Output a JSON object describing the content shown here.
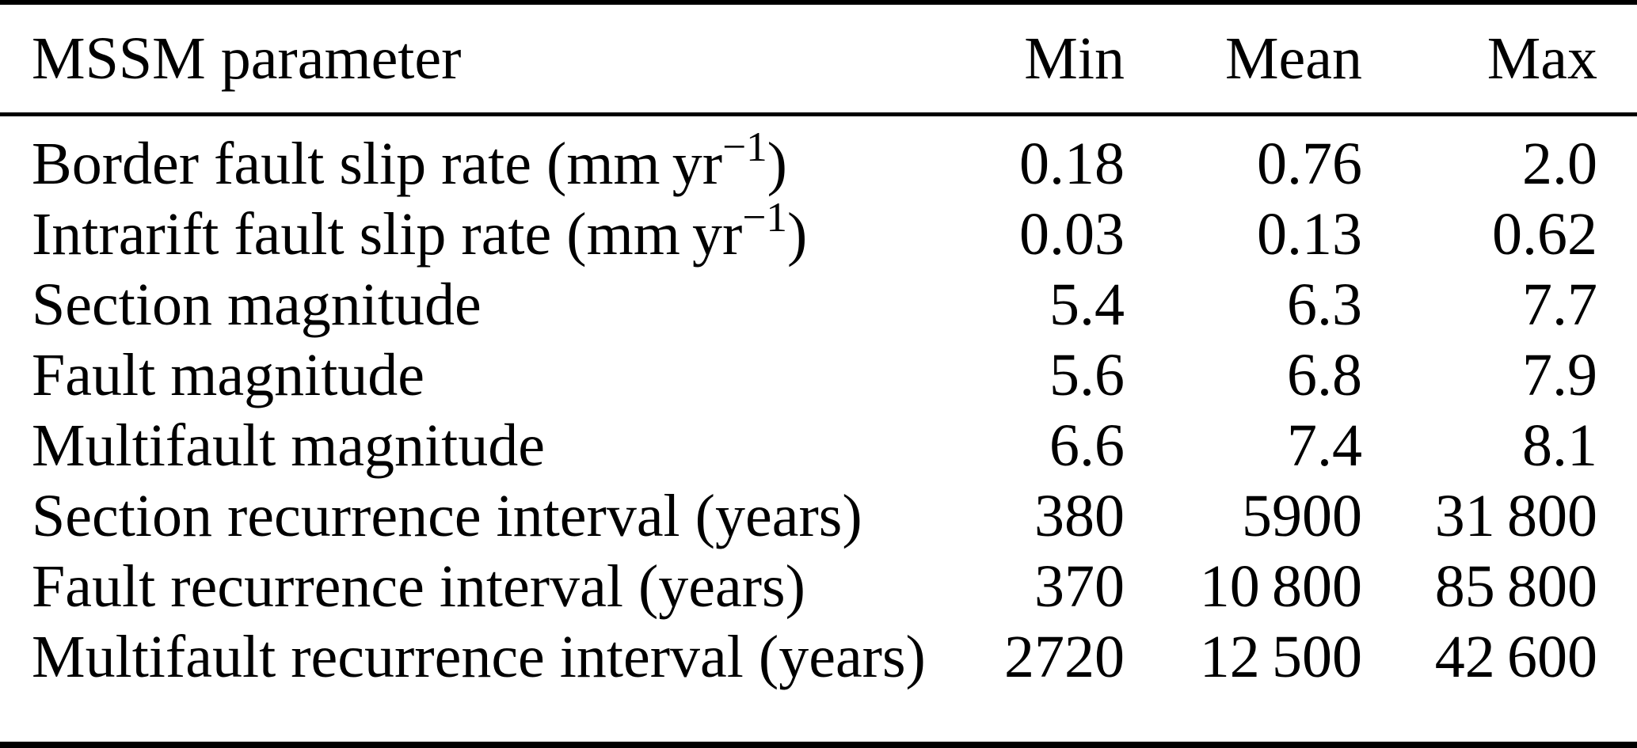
{
  "table": {
    "title": "MSSM parameter summary table",
    "columns": [
      "MSSM parameter",
      "Min",
      "Mean",
      "Max"
    ],
    "rows": [
      {
        "param": "Border fault slip rate (mm yr",
        "param_sup": "−1",
        "param_tail": ")",
        "min": "0.18",
        "mean": "0.76",
        "max": "2.0"
      },
      {
        "param": "Intrarift fault slip rate (mm yr",
        "param_sup": "−1",
        "param_tail": ")",
        "min": "0.03",
        "mean": "0.13",
        "max": "0.62"
      },
      {
        "param": "Section magnitude",
        "min": "5.4",
        "mean": "6.3",
        "max": "7.7"
      },
      {
        "param": "Fault magnitude",
        "min": "5.6",
        "mean": "6.8",
        "max": "7.9"
      },
      {
        "param": "Multifault magnitude",
        "min": "6.6",
        "mean": "7.4",
        "max": "8.1"
      },
      {
        "param": "Section recurrence interval (years)",
        "min": "380",
        "mean": "5900",
        "max": "31 800"
      },
      {
        "param": "Fault recurrence interval (years)",
        "min": "370",
        "mean": "10 800",
        "max": "85 800"
      },
      {
        "param": "Multifault recurrence interval (years)",
        "min": "2720",
        "mean": "12 500",
        "max": "42 600"
      }
    ],
    "colors": {
      "text": "#000000",
      "rule": "#000000",
      "background": "#ffffff"
    }
  },
  "chart_data": {
    "type": "table",
    "title": "MSSM parameter",
    "categories": [
      "Border fault slip rate (mm yr-1)",
      "Intrarift fault slip rate (mm yr-1)",
      "Section magnitude",
      "Fault magnitude",
      "Multifault magnitude",
      "Section recurrence interval (years)",
      "Fault recurrence interval (years)",
      "Multifault recurrence interval (years)"
    ],
    "series": [
      {
        "name": "Min",
        "values": [
          0.18,
          0.03,
          5.4,
          5.6,
          6.6,
          380,
          370,
          2720
        ]
      },
      {
        "name": "Mean",
        "values": [
          0.76,
          0.13,
          6.3,
          6.8,
          7.4,
          5900,
          10800,
          12500
        ]
      },
      {
        "name": "Max",
        "values": [
          2.0,
          0.62,
          7.7,
          7.9,
          8.1,
          31800,
          85800,
          42600
        ]
      }
    ]
  }
}
